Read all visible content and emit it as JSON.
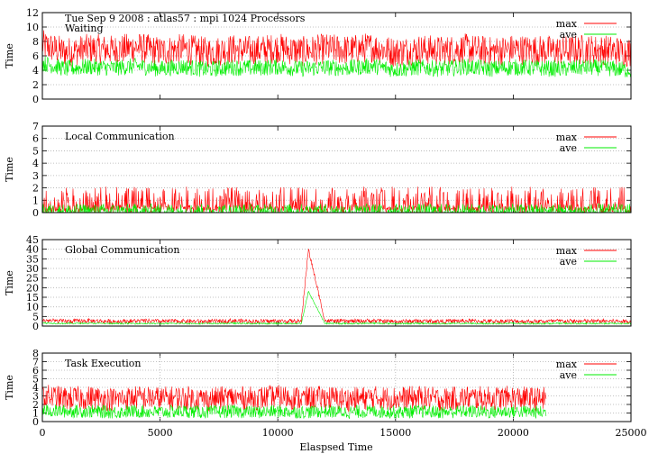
{
  "figure": {
    "header": "Tue Sep 9 2008 : atlas57 : mpi 1024 Processors",
    "xlabel": "Elaspsed Time"
  },
  "chart_data": [
    {
      "type": "line",
      "title": "Waiting",
      "ylabel": "Time",
      "xlim": [
        0,
        25000
      ],
      "ylim": [
        0,
        12
      ],
      "yticks": [
        0,
        2,
        4,
        6,
        8,
        10,
        12
      ],
      "x_ticks_labeled": false,
      "grid": "horizontal dotted",
      "legend_position": "top-right",
      "series": [
        {
          "name": "max",
          "color": "#ff0000",
          "x": [
            0,
            1000,
            2000,
            3000,
            4000,
            5000,
            6000,
            7000,
            8000,
            9000,
            10000,
            11000,
            12000,
            13000,
            14000,
            15000,
            16000,
            17000,
            18000,
            19000,
            20000,
            21000,
            22000,
            23000,
            24000,
            25000
          ],
          "y": [
            7.5,
            6.5,
            7,
            6.8,
            7.2,
            6.6,
            7,
            6.5,
            6.9,
            6.7,
            7.1,
            6.6,
            7,
            6.8,
            7.2,
            6.5,
            6.9,
            6.7,
            7,
            6.6,
            6.9,
            6.8,
            6.7,
            6.9,
            6.8,
            6.5
          ]
        },
        {
          "name": "ave",
          "color": "#00ee00",
          "x": [
            0,
            1000,
            2000,
            3000,
            4000,
            5000,
            6000,
            7000,
            8000,
            9000,
            10000,
            11000,
            12000,
            13000,
            14000,
            15000,
            16000,
            17000,
            18000,
            19000,
            20000,
            21000,
            22000,
            23000,
            24000,
            25000
          ],
          "y": [
            5,
            4.2,
            4.5,
            4.3,
            4.6,
            4.2,
            4.5,
            4.1,
            4.4,
            4.3,
            4.5,
            4.2,
            4.4,
            4.3,
            4.6,
            4.1,
            4.4,
            4.2,
            4.5,
            4.2,
            4.4,
            4.3,
            4.2,
            4.4,
            4.3,
            4
          ]
        }
      ]
    },
    {
      "type": "line",
      "title": "Local Communication",
      "ylabel": "Time",
      "xlim": [
        0,
        25000
      ],
      "ylim": [
        0,
        7
      ],
      "yticks": [
        0,
        1,
        2,
        3,
        4,
        5,
        6,
        7
      ],
      "x_ticks_labeled": false,
      "grid": "horizontal dotted",
      "legend_position": "top-right",
      "series": [
        {
          "name": "max",
          "color": "#ff0000",
          "x": [
            0,
            1000,
            2000,
            3000,
            4000,
            5000,
            6000,
            7000,
            8000,
            9000,
            10000,
            11000,
            12000,
            13000,
            14000,
            15000,
            16000,
            17000,
            18000,
            19000,
            20000,
            21000,
            22000,
            23000,
            24000,
            25000
          ],
          "y": [
            1.2,
            1.1,
            1.3,
            1.0,
            1.2,
            1.1,
            1.2,
            1.0,
            1.3,
            1.1,
            1.2,
            1.1,
            1.2,
            1.0,
            1.3,
            1.1,
            1.2,
            1.1,
            1.3,
            1.0,
            1.2,
            1.1,
            1.2,
            1.0,
            1.1,
            0.9
          ]
        },
        {
          "name": "ave",
          "color": "#00ee00",
          "x": [
            0,
            5000,
            10000,
            15000,
            20000,
            25000
          ],
          "y": [
            0.05,
            0.05,
            0.05,
            0.05,
            0.05,
            0.05
          ]
        }
      ]
    },
    {
      "type": "line",
      "title": "Global Communication",
      "ylabel": "Time",
      "xlim": [
        0,
        25000
      ],
      "ylim": [
        0,
        45
      ],
      "yticks": [
        0,
        5,
        10,
        15,
        20,
        25,
        30,
        35,
        40,
        45
      ],
      "x_ticks_labeled": false,
      "grid": "horizontal dotted",
      "legend_position": "top-right",
      "series": [
        {
          "name": "max",
          "color": "#ff0000",
          "x": [
            0,
            1000,
            2000,
            3000,
            4000,
            5000,
            6000,
            7000,
            8000,
            9000,
            10000,
            11000,
            11300,
            12000,
            13000,
            14000,
            15000,
            16000,
            17000,
            18000,
            19000,
            20000,
            21000,
            22000,
            23000,
            24000,
            25000
          ],
          "y": [
            3,
            2.5,
            2.8,
            2.4,
            2.7,
            2.5,
            2.6,
            2.4,
            2.8,
            2.5,
            2.6,
            2.5,
            40,
            2.7,
            2.5,
            2.8,
            2.4,
            2.6,
            2.5,
            2.7,
            2.5,
            2.6,
            2.4,
            2.6,
            2.5,
            2.6,
            2.4
          ]
        },
        {
          "name": "ave",
          "color": "#00ee00",
          "x": [
            0,
            1000,
            2000,
            3000,
            4000,
            5000,
            6000,
            7000,
            8000,
            9000,
            10000,
            11000,
            11300,
            12000,
            13000,
            14000,
            15000,
            16000,
            17000,
            18000,
            19000,
            20000,
            21000,
            22000,
            23000,
            24000,
            25000
          ],
          "y": [
            1.6,
            1.4,
            1.5,
            1.3,
            1.4,
            1.3,
            1.4,
            1.3,
            1.5,
            1.3,
            1.4,
            1.3,
            18,
            1.4,
            1.3,
            1.5,
            1.3,
            1.4,
            1.3,
            1.4,
            1.3,
            1.4,
            1.3,
            1.4,
            1.3,
            1.4,
            1.3
          ]
        }
      ]
    },
    {
      "type": "line",
      "title": "Task Execution",
      "ylabel": "Time",
      "xlim": [
        0,
        25000
      ],
      "ylim": [
        0,
        8
      ],
      "yticks": [
        0,
        1,
        2,
        3,
        4,
        5,
        6,
        7,
        8
      ],
      "xticks": [
        0,
        5000,
        10000,
        15000,
        20000,
        25000
      ],
      "x_ticks_labeled": true,
      "grid": "horizontal dotted; vertical dotted at x ticks",
      "legend_position": "top-right",
      "series": [
        {
          "name": "max",
          "color": "#ff0000",
          "x": [
            0,
            1000,
            2000,
            3000,
            4000,
            5000,
            6000,
            7000,
            8000,
            9000,
            10000,
            11000,
            12000,
            13000,
            14000,
            15000,
            16000,
            17000,
            18000,
            19000,
            20000,
            21000,
            21400
          ],
          "y": [
            3,
            2.7,
            2.8,
            2.6,
            2.8,
            2.7,
            2.8,
            2.6,
            2.8,
            2.7,
            2.9,
            2.7,
            2.8,
            2.6,
            2.8,
            2.7,
            2.8,
            2.6,
            2.8,
            2.7,
            2.8,
            2.6,
            2.7
          ]
        },
        {
          "name": "ave",
          "color": "#00ee00",
          "x": [
            0,
            1000,
            2000,
            3000,
            4000,
            5000,
            6000,
            7000,
            8000,
            9000,
            10000,
            11000,
            12000,
            13000,
            14000,
            15000,
            16000,
            17000,
            18000,
            19000,
            20000,
            21000,
            21400
          ],
          "y": [
            1.3,
            1.2,
            1.2,
            1.1,
            1.2,
            1.1,
            1.2,
            1.1,
            1.2,
            1.1,
            1.2,
            1.1,
            1.2,
            1.1,
            1.2,
            1.1,
            1.2,
            1.1,
            1.2,
            1.1,
            1.2,
            1.1,
            1.1
          ]
        }
      ]
    }
  ]
}
